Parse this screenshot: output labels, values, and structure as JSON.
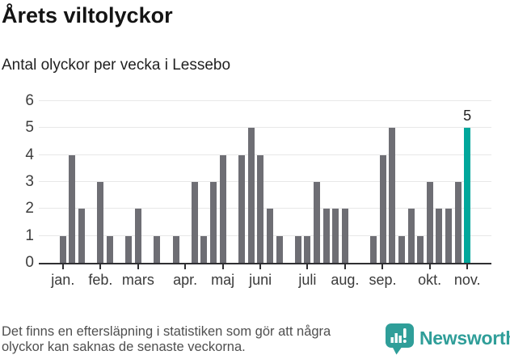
{
  "title": "Årets viltolyckor",
  "subtitle": "Antal olyckor per vecka i Lessebo",
  "chart_data": {
    "type": "bar",
    "x_unit": "vecka (week)",
    "values": [
      1,
      4,
      2,
      0,
      3,
      1,
      0,
      1,
      2,
      0,
      1,
      0,
      1,
      0,
      3,
      1,
      3,
      4,
      0,
      4,
      5,
      4,
      2,
      1,
      0,
      1,
      1,
      3,
      2,
      2,
      2,
      0,
      0,
      1,
      4,
      5,
      1,
      2,
      1,
      3,
      2,
      2,
      3,
      5
    ],
    "highlight_index": 43,
    "highlight_label": "5",
    "month_ticks": [
      {
        "label": "jan.",
        "slot": 0
      },
      {
        "label": "feb.",
        "slot": 4
      },
      {
        "label": "mars",
        "slot": 8
      },
      {
        "label": "apr.",
        "slot": 13
      },
      {
        "label": "maj",
        "slot": 17
      },
      {
        "label": "juni",
        "slot": 21
      },
      {
        "label": "juli",
        "slot": 26
      },
      {
        "label": "aug.",
        "slot": 30
      },
      {
        "label": "sep.",
        "slot": 34
      },
      {
        "label": "okt.",
        "slot": 39
      },
      {
        "label": "nov.",
        "slot": 43
      }
    ],
    "y_ticks": [
      0,
      1,
      2,
      3,
      4,
      5,
      6
    ],
    "ylim": [
      0,
      6
    ],
    "grid": true,
    "legend": "none",
    "bar_color": "#6e6e74",
    "highlight_color": "#00a79b"
  },
  "footer": {
    "note_line1": "Det finns en eftersläpning i statistiken som gör att några",
    "note_line2": "olyckor kan saknas de senaste veckorna.",
    "brand": "Newsworthy",
    "brand_color": "#2f9e99"
  }
}
